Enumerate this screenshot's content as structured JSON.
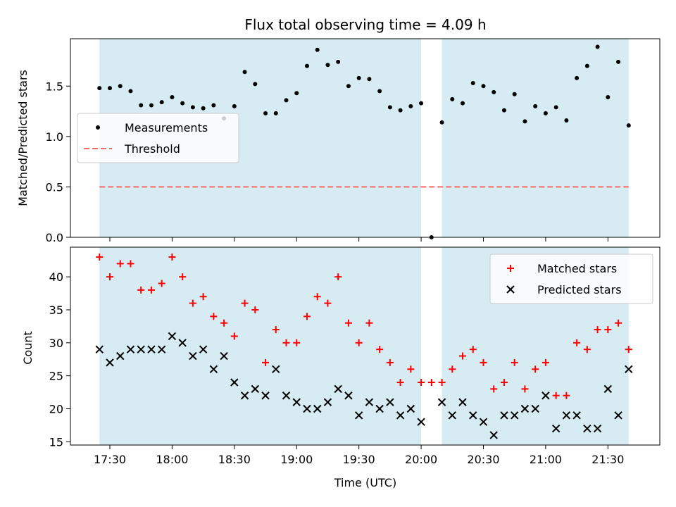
{
  "chart_data": [
    {
      "type": "scatter",
      "title": "Flux total observing time = 4.09 h",
      "xlabel": "",
      "ylabel": "Matched/Predicted stars",
      "ylim": [
        0,
        1.97
      ],
      "yticks": [
        "0.0",
        "0.5",
        "1.0",
        "1.5"
      ],
      "legend_position": "center-left",
      "grid": false,
      "shaded_intervals": [
        [
          "17:25",
          "20:00"
        ],
        [
          "20:10",
          "21:40"
        ]
      ],
      "shade_color": "#add8e6",
      "threshold": {
        "name": "Threshold",
        "value": 0.5,
        "color": "#ff6666"
      },
      "series": [
        {
          "name": "Measurements",
          "color": "#000000",
          "x": [
            "17:25",
            "17:30",
            "17:35",
            "17:40",
            "17:45",
            "17:50",
            "17:55",
            "18:00",
            "18:05",
            "18:10",
            "18:15",
            "18:20",
            "18:25",
            "18:30",
            "18:35",
            "18:40",
            "18:45",
            "18:50",
            "18:55",
            "19:00",
            "19:05",
            "19:10",
            "19:15",
            "19:20",
            "19:25",
            "19:30",
            "19:35",
            "19:40",
            "19:45",
            "19:50",
            "19:55",
            "20:00",
            "20:05",
            "20:10",
            "20:15",
            "20:20",
            "20:25",
            "20:30",
            "20:35",
            "20:40",
            "20:45",
            "20:50",
            "20:55",
            "21:00",
            "21:05",
            "21:10",
            "21:15",
            "21:20",
            "21:25",
            "21:30",
            "21:35",
            "21:40"
          ],
          "y": [
            1.48,
            1.48,
            1.5,
            1.45,
            1.31,
            1.31,
            1.34,
            1.39,
            1.33,
            1.29,
            1.28,
            1.31,
            1.18,
            1.3,
            1.64,
            1.52,
            1.23,
            1.23,
            1.36,
            1.43,
            1.7,
            1.86,
            1.71,
            1.74,
            1.5,
            1.58,
            1.57,
            1.45,
            1.29,
            1.26,
            1.3,
            1.33,
            0.0,
            1.14,
            1.37,
            1.33,
            1.53,
            1.5,
            1.44,
            1.26,
            1.42,
            1.15,
            1.3,
            1.23,
            1.29,
            1.16,
            1.58,
            1.7,
            1.89,
            1.39,
            1.74,
            1.11
          ]
        }
      ]
    },
    {
      "type": "scatter",
      "title": "",
      "xlabel": "Time (UTC)",
      "ylabel": "Count",
      "ylim": [
        14.5,
        44.5
      ],
      "yticks": [
        "15",
        "20",
        "25",
        "30",
        "35",
        "40"
      ],
      "xticks": [
        "17:30",
        "18:00",
        "18:30",
        "19:00",
        "19:30",
        "20:00",
        "20:30",
        "21:00",
        "21:30"
      ],
      "legend_position": "top-right",
      "grid": false,
      "shaded_intervals": [
        [
          "17:25",
          "20:00"
        ],
        [
          "20:10",
          "21:40"
        ]
      ],
      "shade_color": "#add8e6",
      "series": [
        {
          "name": "Matched stars",
          "marker": "plus",
          "color": "#ff0000",
          "x": [
            "17:25",
            "17:30",
            "17:35",
            "17:40",
            "17:45",
            "17:50",
            "17:55",
            "18:00",
            "18:05",
            "18:10",
            "18:15",
            "18:20",
            "18:25",
            "18:30",
            "18:35",
            "18:40",
            "18:45",
            "18:50",
            "18:55",
            "19:00",
            "19:05",
            "19:10",
            "19:15",
            "19:20",
            "19:25",
            "19:30",
            "19:35",
            "19:40",
            "19:45",
            "19:50",
            "19:55",
            "20:00",
            "20:05",
            "20:10",
            "20:15",
            "20:20",
            "20:25",
            "20:30",
            "20:35",
            "20:40",
            "20:45",
            "20:50",
            "20:55",
            "21:00",
            "21:05",
            "21:10",
            "21:15",
            "21:20",
            "21:25",
            "21:30",
            "21:35",
            "21:40"
          ],
          "y": [
            43,
            40,
            42,
            42,
            38,
            38,
            39,
            43,
            40,
            36,
            37,
            34,
            33,
            31,
            36,
            35,
            27,
            32,
            30,
            30,
            34,
            37,
            36,
            40,
            33,
            30,
            33,
            29,
            27,
            24,
            26,
            24,
            24,
            24,
            26,
            28,
            29,
            27,
            23,
            24,
            27,
            23,
            26,
            27,
            22,
            22,
            30,
            29,
            32,
            32,
            33,
            29
          ]
        },
        {
          "name": "Predicted stars",
          "marker": "x",
          "color": "#000000",
          "x": [
            "17:25",
            "17:30",
            "17:35",
            "17:40",
            "17:45",
            "17:50",
            "17:55",
            "18:00",
            "18:05",
            "18:10",
            "18:15",
            "18:20",
            "18:25",
            "18:30",
            "18:35",
            "18:40",
            "18:45",
            "18:50",
            "18:55",
            "19:00",
            "19:05",
            "19:10",
            "19:15",
            "19:20",
            "19:25",
            "19:30",
            "19:35",
            "19:40",
            "19:45",
            "19:50",
            "19:55",
            "20:00",
            "20:10",
            "20:15",
            "20:20",
            "20:25",
            "20:30",
            "20:35",
            "20:40",
            "20:45",
            "20:50",
            "20:55",
            "21:00",
            "21:05",
            "21:10",
            "21:15",
            "21:20",
            "21:25",
            "21:30",
            "21:35",
            "21:40"
          ],
          "y": [
            29,
            27,
            28,
            29,
            29,
            29,
            29,
            31,
            30,
            28,
            29,
            26,
            28,
            24,
            22,
            23,
            22,
            26,
            22,
            21,
            20,
            20,
            21,
            23,
            22,
            19,
            21,
            20,
            21,
            19,
            20,
            18,
            21,
            19,
            21,
            19,
            18,
            16,
            19,
            19,
            20,
            20,
            22,
            17,
            19,
            19,
            17,
            17,
            23,
            19,
            26
          ]
        }
      ]
    }
  ]
}
